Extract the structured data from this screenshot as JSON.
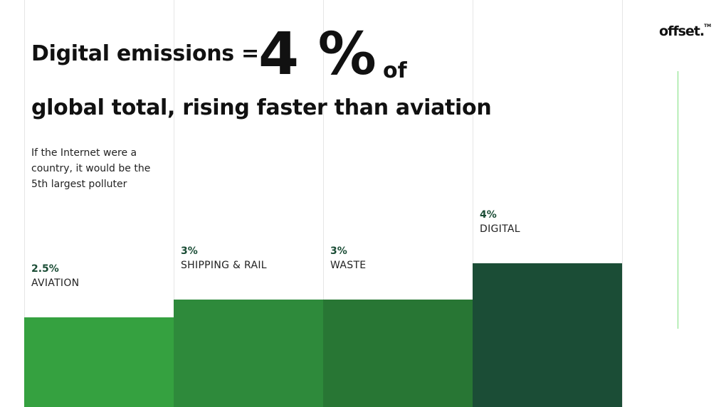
{
  "header": {
    "title_line1": "Digital emissions =",
    "big_value": "4 %",
    "title_of": "of",
    "title_line2": "global total, rising faster than aviation",
    "subtitle": "If the Internet were a country, it would be the 5th largest polluter"
  },
  "logo": {
    "text": "offset.",
    "mark": "TM"
  },
  "chart_data": {
    "type": "bar",
    "categories": [
      "AVIATION",
      "SHIPPING & RAIL",
      "WASTE",
      "DIGITAL"
    ],
    "values": [
      2.5,
      3,
      3,
      4
    ],
    "value_labels": [
      "2.5%",
      "3%",
      "3%",
      "4%"
    ],
    "unit": "%",
    "ylim": [
      0,
      4
    ],
    "colors": [
      "#35a140",
      "#2e8a3b",
      "#287634",
      "#1b4d36"
    ],
    "grid": true
  }
}
